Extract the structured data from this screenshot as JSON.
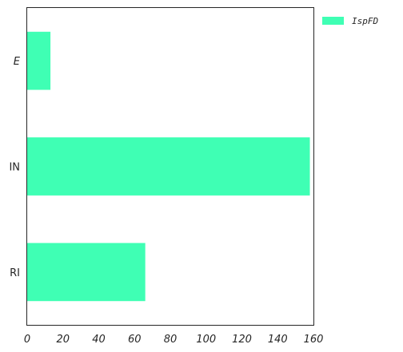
{
  "chart_data": {
    "type": "bar",
    "orientation": "horizontal",
    "categories": [
      "E",
      "IN",
      "RI"
    ],
    "category_italic": [
      true,
      false,
      false
    ],
    "series": [
      {
        "name": "IspFD",
        "values": [
          13,
          158,
          66
        ],
        "color": "#3fffb4"
      }
    ],
    "xlim": [
      0,
      160
    ],
    "x_ticks": [
      "0",
      "20",
      "40",
      "60",
      "80",
      "100",
      "120",
      "140",
      "160"
    ],
    "grid": false,
    "legend_position": "outside-top-right",
    "title": "",
    "xlabel": "",
    "ylabel": ""
  }
}
